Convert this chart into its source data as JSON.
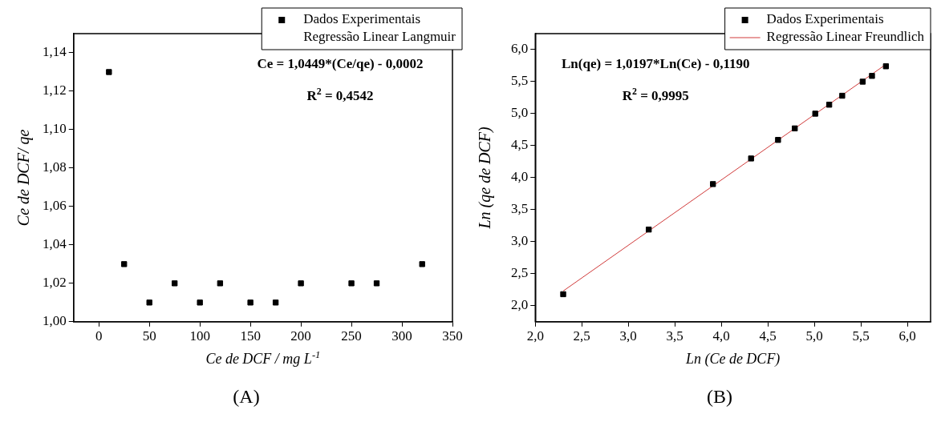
{
  "chart_data": [
    {
      "type": "scatter",
      "title": "(A)",
      "xlabel": "Ce de DCF / mg L$^{-1}$",
      "ylabel": "Ce de DCF/ qe",
      "legend": "top right",
      "x": [
        10,
        25,
        50,
        75,
        100,
        120,
        150,
        175,
        200,
        250,
        275,
        320
      ],
      "series": [
        {
          "name": "Dados Experimentais",
          "color": "#000000",
          "marker": "square",
          "values": [
            1.13,
            1.03,
            1.01,
            1.02,
            1.01,
            1.02,
            1.01,
            1.01,
            1.02,
            1.02,
            1.02,
            1.03
          ]
        },
        {
          "name": "Regressão Linear Langmuir",
          "type": "line",
          "values": [
            null,
            null,
            null,
            null,
            null,
            null,
            null,
            null,
            null,
            null,
            null,
            null
          ]
        }
      ],
      "xlim": [
        -25,
        350
      ],
      "xticks": [
        0,
        50,
        100,
        150,
        200,
        250,
        300,
        350
      ],
      "ylim": [
        1.0,
        1.15
      ],
      "yticks": [
        {
          "value": 1.0,
          "label": "1,00"
        },
        {
          "value": 1.02,
          "label": "1,02"
        },
        {
          "value": 1.04,
          "label": "1,04"
        },
        {
          "value": 1.06,
          "label": "1,06"
        },
        {
          "value": 1.08,
          "label": "1,08"
        },
        {
          "value": 1.1,
          "label": "1,10"
        },
        {
          "value": 1.12,
          "label": "1,12"
        },
        {
          "value": 1.14,
          "label": "1,14"
        }
      ],
      "annotations": [
        "Ce = 1,0449*(Ce/qe) - 0,0002",
        "R$^{2}$ = 0,4542"
      ]
    },
    {
      "type": "scatter",
      "title": "(B)",
      "xlabel": "Ln (Ce de DCF)",
      "ylabel": "Ln (qe de DCF)",
      "legend": "top right",
      "x": [
        2.3,
        3.22,
        3.91,
        4.32,
        4.61,
        4.79,
        5.01,
        5.16,
        5.3,
        5.52,
        5.62,
        5.77
      ],
      "series": [
        {
          "name": "Dados Experimentais",
          "color": "#000000",
          "marker": "square",
          "values": [
            2.18,
            3.19,
            3.9,
            4.3,
            4.59,
            4.77,
            5.0,
            5.14,
            5.28,
            5.5,
            5.59,
            5.74
          ]
        },
        {
          "name": "Regressão Linear Freundlich",
          "type": "line",
          "color": "#d03a3a",
          "x": [
            2.3,
            5.77
          ],
          "values": [
            2.23,
            5.77
          ]
        }
      ],
      "xlim": [
        2.0,
        6.25
      ],
      "xticks": [
        {
          "value": 2,
          "label": "2,0"
        },
        {
          "value": 2.5,
          "label": "2,5"
        },
        {
          "value": 3,
          "label": "3,0"
        },
        {
          "value": 3.5,
          "label": "3,5"
        },
        {
          "value": 4,
          "label": "4,0"
        },
        {
          "value": 4.5,
          "label": "4,5"
        },
        {
          "value": 5,
          "label": "5,0"
        },
        {
          "value": 5.5,
          "label": "5,5"
        },
        {
          "value": 6,
          "label": "6,0"
        }
      ],
      "ylim": [
        1.75,
        6.25
      ],
      "yticks": [
        {
          "value": 2,
          "label": "2,0"
        },
        {
          "value": 2.5,
          "label": "2,5"
        },
        {
          "value": 3,
          "label": "3,0"
        },
        {
          "value": 3.5,
          "label": "3,5"
        },
        {
          "value": 4,
          "label": "4,0"
        },
        {
          "value": 4.5,
          "label": "4,5"
        },
        {
          "value": 5,
          "label": "5,0"
        },
        {
          "value": 5.5,
          "label": "5,5"
        },
        {
          "value": 6,
          "label": "6,0"
        }
      ],
      "annotations": [
        "Ln(qe) = 1,0197*Ln(Ce) - 0,1190",
        "R$^{2}$ = 0,9995"
      ]
    }
  ]
}
